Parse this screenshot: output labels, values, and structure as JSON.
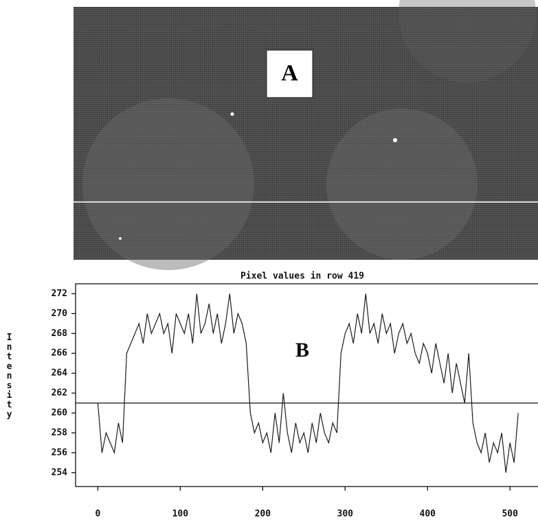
{
  "chart_data": {
    "type": "line",
    "panel_a_label": "A",
    "panel_b_label": "B",
    "title": "Pixel values in row 419",
    "y_label": "Intensity",
    "color": "#1a1a1a",
    "reference_line": 261,
    "x": [
      0,
      5,
      10,
      15,
      20,
      25,
      30,
      35,
      40,
      45,
      50,
      55,
      60,
      65,
      70,
      75,
      80,
      85,
      90,
      95,
      100,
      105,
      110,
      115,
      120,
      125,
      130,
      135,
      140,
      145,
      150,
      155,
      160,
      165,
      170,
      175,
      180,
      185,
      190,
      195,
      200,
      205,
      210,
      215,
      220,
      225,
      230,
      235,
      240,
      245,
      250,
      255,
      260,
      265,
      270,
      275,
      280,
      285,
      290,
      295,
      300,
      305,
      310,
      315,
      320,
      325,
      330,
      335,
      340,
      345,
      350,
      355,
      360,
      365,
      370,
      375,
      380,
      385,
      390,
      395,
      400,
      405,
      410,
      415,
      420,
      425,
      430,
      435,
      440,
      445,
      450,
      455,
      460,
      465,
      470,
      475,
      480,
      485,
      490,
      495,
      500,
      505,
      510
    ],
    "values": [
      261,
      256,
      258,
      257,
      256,
      259,
      257,
      266,
      267,
      268,
      269,
      267,
      270,
      268,
      269,
      270,
      268,
      269,
      266,
      270,
      269,
      268,
      270,
      267,
      272,
      268,
      269,
      271,
      268,
      270,
      267,
      269,
      272,
      268,
      270,
      269,
      267,
      260,
      258,
      259,
      257,
      258,
      256,
      260,
      257,
      262,
      258,
      256,
      259,
      257,
      258,
      256,
      259,
      257,
      260,
      258,
      257,
      259,
      258,
      266,
      268,
      269,
      267,
      270,
      268,
      272,
      268,
      269,
      267,
      270,
      268,
      269,
      266,
      268,
      269,
      267,
      268,
      266,
      265,
      267,
      266,
      264,
      267,
      265,
      263,
      266,
      262,
      265,
      263,
      261,
      266,
      259,
      257,
      256,
      258,
      255,
      257,
      256,
      258,
      254,
      257,
      255,
      260
    ],
    "xlim": [
      -27,
      534
    ],
    "ylim": [
      252.6,
      273
    ],
    "xticks": [
      0,
      100,
      200,
      300,
      400,
      500
    ],
    "yticks": [
      254,
      256,
      258,
      260,
      262,
      264,
      266,
      268,
      270,
      272
    ]
  }
}
